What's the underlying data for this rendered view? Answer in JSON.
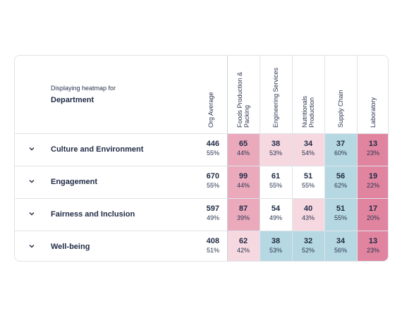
{
  "header": {
    "displaying_label": "Displaying heatmap for",
    "displaying_value": "Department"
  },
  "columns": [
    {
      "label": "Org Average"
    },
    {
      "label": "Foods Production &",
      "label2": "Packing"
    },
    {
      "label": "Engineering Services"
    },
    {
      "label": "Nutritionals",
      "label2": "Production"
    },
    {
      "label": "Supply Chain"
    },
    {
      "label": "Laboratory"
    }
  ],
  "colors": {
    "pink_dark": "#e0849f",
    "pink_mid": "#eba9bc",
    "pink_light": "#f6d8e1",
    "blue": "#b6d8e3",
    "white": "#ffffff"
  },
  "rows": [
    {
      "label": "Culture and Environment",
      "org": {
        "n": "446",
        "p": "55%"
      },
      "cells": [
        {
          "n": "65",
          "p": "44%",
          "color": "#eba9bc"
        },
        {
          "n": "38",
          "p": "53%",
          "color": "#f6d8e1"
        },
        {
          "n": "34",
          "p": "54%",
          "color": "#f6d8e1"
        },
        {
          "n": "37",
          "p": "60%",
          "color": "#b6d8e3"
        },
        {
          "n": "13",
          "p": "23%",
          "color": "#e0849f"
        }
      ]
    },
    {
      "label": "Engagement",
      "org": {
        "n": "670",
        "p": "55%"
      },
      "cells": [
        {
          "n": "99",
          "p": "44%",
          "color": "#eba9bc"
        },
        {
          "n": "61",
          "p": "55%",
          "color": "#ffffff"
        },
        {
          "n": "51",
          "p": "55%",
          "color": "#ffffff"
        },
        {
          "n": "56",
          "p": "62%",
          "color": "#b6d8e3"
        },
        {
          "n": "19",
          "p": "22%",
          "color": "#e0849f"
        }
      ]
    },
    {
      "label": "Fairness and Inclusion",
      "org": {
        "n": "597",
        "p": "49%"
      },
      "cells": [
        {
          "n": "87",
          "p": "39%",
          "color": "#eba9bc"
        },
        {
          "n": "54",
          "p": "49%",
          "color": "#ffffff"
        },
        {
          "n": "40",
          "p": "43%",
          "color": "#f6d8e1"
        },
        {
          "n": "51",
          "p": "55%",
          "color": "#b6d8e3"
        },
        {
          "n": "17",
          "p": "20%",
          "color": "#e0849f"
        }
      ]
    },
    {
      "label": "Well-being",
      "org": {
        "n": "408",
        "p": "51%"
      },
      "cells": [
        {
          "n": "62",
          "p": "42%",
          "color": "#f6d8e1"
        },
        {
          "n": "38",
          "p": "53%",
          "color": "#b6d8e3"
        },
        {
          "n": "32",
          "p": "52%",
          "color": "#b6d8e3"
        },
        {
          "n": "34",
          "p": "56%",
          "color": "#b6d8e3"
        },
        {
          "n": "13",
          "p": "23%",
          "color": "#e0849f"
        }
      ]
    }
  ]
}
